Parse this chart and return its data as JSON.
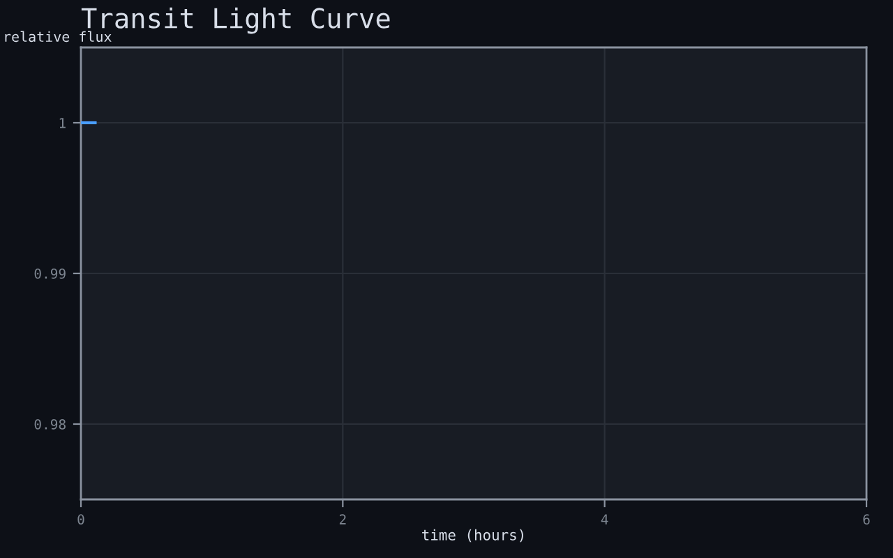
{
  "chart_data": {
    "type": "line",
    "title": "Transit Light Curve",
    "xlabel": "time (hours)",
    "ylabel": "relative flux",
    "x": [
      0,
      0.12
    ],
    "series": [
      {
        "color": "#4a9eff",
        "values": [
          1,
          1
        ]
      }
    ],
    "xlim": [
      0,
      6
    ],
    "xticks": [
      0,
      2,
      4,
      6
    ],
    "ylim": [
      0.975,
      1.005
    ],
    "yticks": [
      0.98,
      0.99,
      1
    ],
    "grid": true,
    "line_style": "solid"
  }
}
